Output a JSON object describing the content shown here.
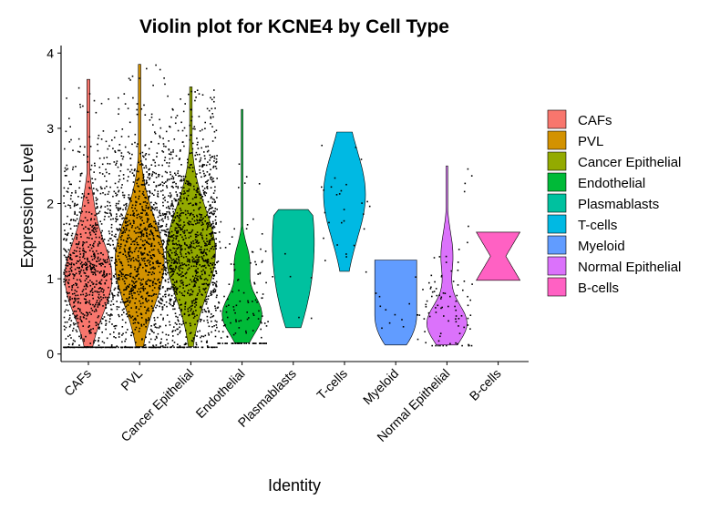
{
  "chart_data": {
    "type": "violin",
    "title": "Violin plot for KCNE4 by Cell Type",
    "xlabel": "Identity",
    "ylabel": "Expression Level",
    "ylim": [
      -0.1,
      4.1
    ],
    "yticks": [
      "0",
      "1",
      "2",
      "3",
      "4"
    ],
    "grid": false,
    "legend_position": "right",
    "categories": [
      "CAFs",
      "PVL",
      "Cancer Epithelial",
      "Endothelial",
      "Plasmablasts",
      "T-cells",
      "Myeloid",
      "Normal Epithelial",
      "B-cells"
    ],
    "series": [
      {
        "name": "CAFs",
        "color": "#F8766D",
        "min": 0.1,
        "max": 3.65,
        "median": 1.05,
        "mode": 1.0,
        "n_points": 900
      },
      {
        "name": "PVL",
        "color": "#D39200",
        "min": 0.1,
        "max": 3.85,
        "median": 1.3,
        "mode": 1.25,
        "n_points": 1100
      },
      {
        "name": "Cancer Epithelial",
        "color": "#93AA00",
        "min": 0.1,
        "max": 3.55,
        "median": 1.45,
        "mode": 1.4,
        "n_points": 1200
      },
      {
        "name": "Endothelial",
        "color": "#00BA38",
        "min": 0.15,
        "max": 3.25,
        "median": 0.55,
        "mode": 0.5,
        "n_points": 140
      },
      {
        "name": "Plasmablasts",
        "color": "#00C19F",
        "min": 0.35,
        "max": 1.92,
        "median": 1.0,
        "mode": 1.0,
        "n_points": 6
      },
      {
        "name": "T-cells",
        "color": "#00B9E3",
        "min": 1.1,
        "max": 2.95,
        "median": 2.0,
        "mode": 2.1,
        "n_points": 28
      },
      {
        "name": "Myeloid",
        "color": "#619CFF",
        "min": 0.12,
        "max": 1.25,
        "median": 0.6,
        "mode": 0.8,
        "n_points": 14
      },
      {
        "name": "Normal Epithelial",
        "color": "#DB72FB",
        "min": 0.12,
        "max": 2.5,
        "median": 0.6,
        "mode": 0.6,
        "n_points": 90
      },
      {
        "name": "B-cells",
        "color": "#FF61C3",
        "min": 0.98,
        "max": 1.62,
        "median": 1.3,
        "mode": 1.0,
        "n_points": 0
      }
    ]
  }
}
